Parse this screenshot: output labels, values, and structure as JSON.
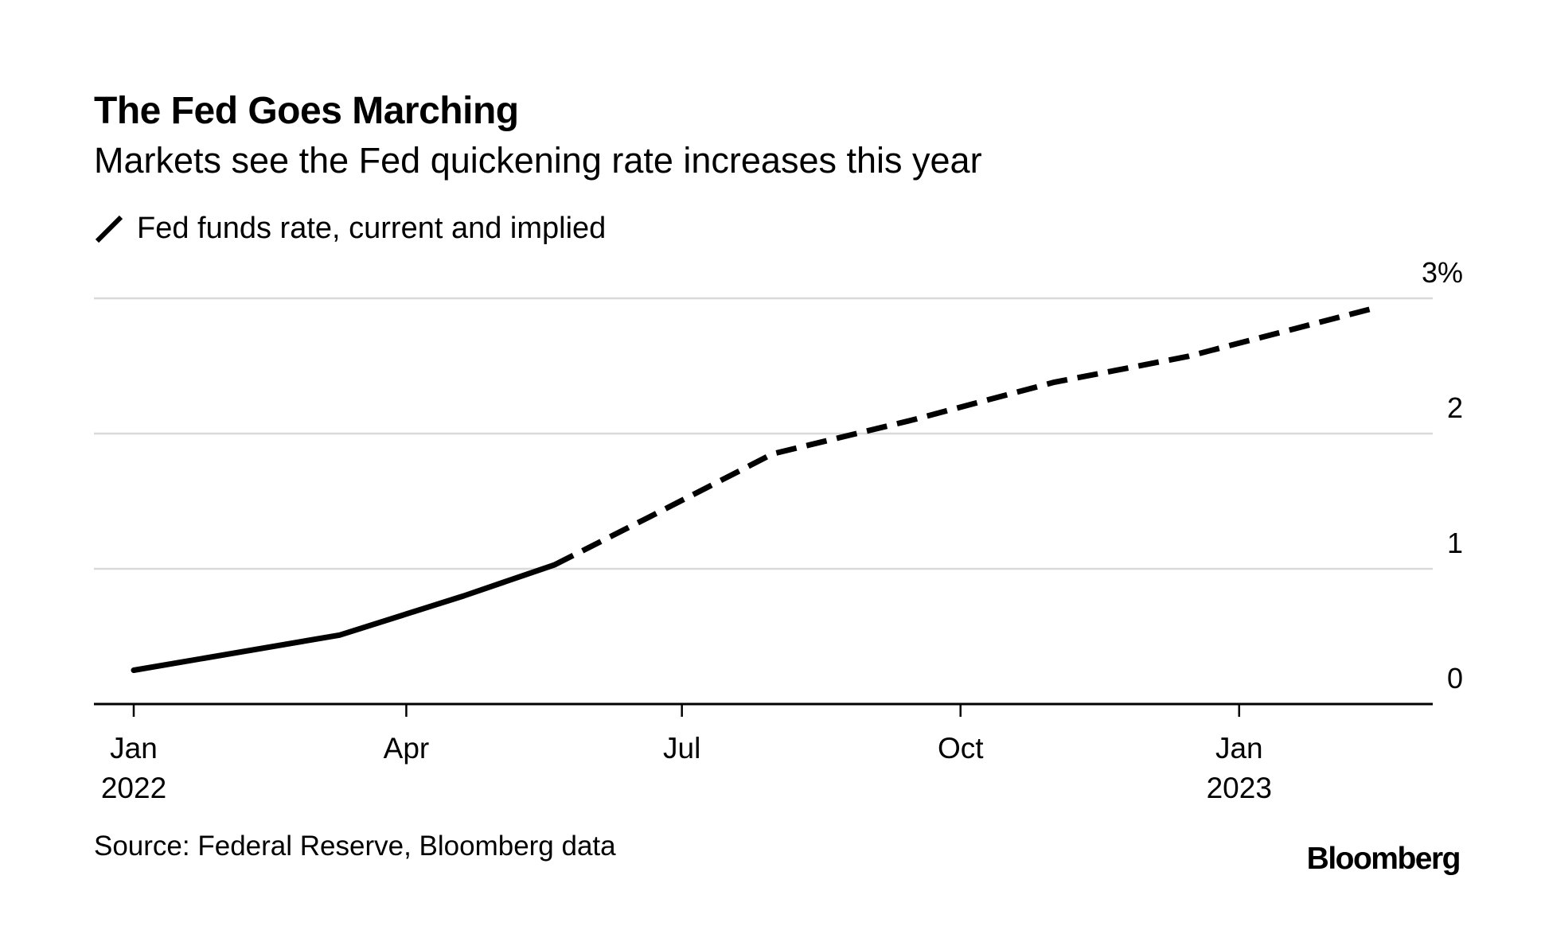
{
  "chart_data": {
    "type": "line",
    "title": "The Fed Goes Marching",
    "subtitle": "Markets see the Fed quickening rate increases this year",
    "legend": {
      "position": "top-left",
      "entries": [
        "Fed funds rate, current and implied"
      ]
    },
    "y_axis": {
      "position": "right",
      "range": [
        0,
        3
      ],
      "ticks": [
        0,
        1,
        2,
        3
      ],
      "tick_labels": [
        "0",
        "1",
        "2",
        "3%"
      ],
      "grid": true
    },
    "x_axis": {
      "range": [
        "2022-01-01",
        "2023-02-15"
      ],
      "ticks": [
        {
          "date": "2022-01-01",
          "label": "Jan",
          "sublabel": "2022"
        },
        {
          "date": "2022-04-01",
          "label": "Apr",
          "sublabel": ""
        },
        {
          "date": "2022-07-01",
          "label": "Jul",
          "sublabel": ""
        },
        {
          "date": "2022-10-01",
          "label": "Oct",
          "sublabel": ""
        },
        {
          "date": "2023-01-01",
          "label": "Jan",
          "sublabel": "2023"
        }
      ]
    },
    "series": [
      {
        "name": "Fed funds rate, current and implied",
        "color": "#000000",
        "points": [
          {
            "x": "2022-01-01",
            "y": 0.25,
            "style": "current"
          },
          {
            "x": "2022-03-10",
            "y": 0.51,
            "style": "current"
          },
          {
            "x": "2022-04-20",
            "y": 0.8,
            "style": "current"
          },
          {
            "x": "2022-05-20",
            "y": 1.03,
            "style": "current"
          },
          {
            "x": "2022-06-20",
            "y": 1.38,
            "style": "implied"
          },
          {
            "x": "2022-07-31",
            "y": 1.85,
            "style": "implied"
          },
          {
            "x": "2022-09-15",
            "y": 2.1,
            "style": "implied"
          },
          {
            "x": "2022-11-01",
            "y": 2.38,
            "style": "implied"
          },
          {
            "x": "2022-12-15",
            "y": 2.57,
            "style": "implied"
          },
          {
            "x": "2023-02-15",
            "y": 2.93,
            "style": "implied"
          }
        ]
      }
    ]
  },
  "source": "Source: Federal Reserve, Bloomberg data",
  "brand": "Bloomberg",
  "colors": {
    "line": "#000000",
    "grid": "#d9d9d9",
    "axis": "#000000",
    "background": "#ffffff"
  }
}
